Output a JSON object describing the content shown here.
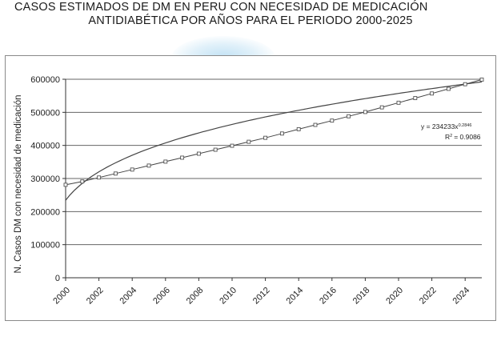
{
  "title": {
    "line1": "CASOS ESTIMADOS DE DM EN PERU CON NECESIDAD DE MEDICACIÓN",
    "line2": "ANTIDIABÉTICA POR AÑOS PARA EL PERIODO 2000-2025"
  },
  "chart_data": {
    "type": "scatter",
    "title": "CASOS ESTIMADOS DE DM EN PERU CON NECESIDAD DE MEDICACIÓN ANTIDIABÉTICA POR AÑOS PARA EL PERIODO 2000-2025",
    "xlabel": "",
    "ylabel": "N. Casos DM con necesidad de medicación",
    "xlim": [
      2000,
      2025
    ],
    "ylim": [
      0,
      600000
    ],
    "x_ticks": [
      "2000",
      "2002",
      "2004",
      "2006",
      "2008",
      "2010",
      "2012",
      "2014",
      "2016",
      "2018",
      "2020",
      "2022",
      "2024"
    ],
    "y_ticks": [
      "0",
      "100000",
      "200000",
      "300000",
      "400000",
      "500000",
      "600000"
    ],
    "y_tick_values": [
      0,
      100000,
      200000,
      300000,
      400000,
      500000,
      600000
    ],
    "grid": "horizontal",
    "series": [
      {
        "x": [
          2000,
          2001,
          2002,
          2003,
          2004,
          2005,
          2006,
          2007,
          2008,
          2009,
          2010,
          2011,
          2012,
          2013,
          2014,
          2015,
          2016,
          2017,
          2018,
          2019,
          2020,
          2021,
          2022,
          2023,
          2024,
          2025
        ],
        "values": [
          281000,
          291000,
          303000,
          315000,
          327000,
          339000,
          351000,
          363000,
          375000,
          387000,
          399000,
          411000,
          423000,
          436000,
          449000,
          462000,
          475000,
          488000,
          501000,
          515000,
          529000,
          543000,
          557000,
          571000,
          585000,
          599000
        ],
        "marker": "square"
      }
    ],
    "trendline": {
      "type": "power",
      "equation": "y = 234233x",
      "exponent": "0.2846",
      "r2_prefix": "R",
      "r2_value": "= 0.9086",
      "r2_exp": "2",
      "a": 234233,
      "b": 0.2846
    },
    "colors": {
      "line": "#444444",
      "marker": "#555555",
      "grid": "#666666"
    }
  }
}
